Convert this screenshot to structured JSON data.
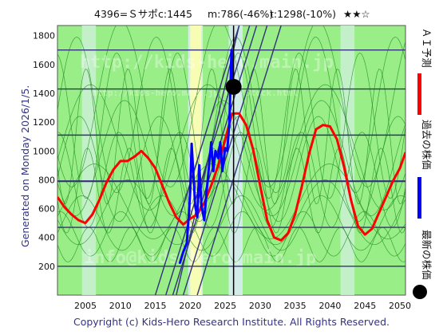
{
  "header": {
    "code_name": "4396=Ｓサポ",
    "current": "c:1445",
    "ma": "m:786(-46%)",
    "target": "t:1298(-10%)",
    "stars": "★★☆"
  },
  "side_text": "Generated on Monday 2026/1/5.",
  "footer": "Copyright (c) Kids-Hero Research Institute. All Rights Reserved.",
  "watermarks": [
    "http://kids-hero.main.jp",
    "http://kids-hero.main.jp/top/Stock.html",
    "info@kids-hero.main.jp"
  ],
  "legend": [
    {
      "label": "ＡＩ予測",
      "color": "#ff0000"
    },
    {
      "label": "過去の株価",
      "color": "#0000ff"
    },
    {
      "label": "最新の株価",
      "color": "#000000"
    }
  ],
  "colors": {
    "background_green": "#99ee88",
    "highlight_white": "#d8ecf2",
    "highlight_yellow": "#ffffaa",
    "grid": "#333377",
    "ai_line": "#ff0000",
    "price_line": "#0000ff",
    "trend_lines": "#333377",
    "thin_lines": "#1a8a1a"
  },
  "chart_data": {
    "type": "line",
    "xlim": [
      2001,
      2050.8
    ],
    "ylim": [
      0,
      1870
    ],
    "x_ticks": [
      2005,
      2010,
      2015,
      2020,
      2025,
      2030,
      2035,
      2040,
      2045,
      2050
    ],
    "y_ticks": [
      200,
      400,
      600,
      800,
      1000,
      1200,
      1400,
      1600,
      1800
    ],
    "horizontal_lines": [
      200,
      470,
      790,
      1110,
      1430,
      1700
    ],
    "vertical_markers": [
      2026.2
    ],
    "latest_price": {
      "x": 2026.2,
      "y": 1445
    },
    "highlight_bands": [
      {
        "from": 2019.7,
        "to": 2021.8,
        "kind": "white"
      },
      {
        "from": 2020.0,
        "to": 2021.6,
        "kind": "yellow"
      },
      {
        "from": 2025.5,
        "to": 2027.5,
        "kind": "white"
      },
      {
        "from": 2004.5,
        "to": 2006.5,
        "kind": "light"
      },
      {
        "from": 2041.5,
        "to": 2043.5,
        "kind": "light"
      }
    ],
    "series": [
      {
        "name": "ＡＩ予測",
        "x": [
          2001,
          2002,
          2003,
          2004,
          2005,
          2006,
          2007,
          2008,
          2009,
          2010,
          2011,
          2012,
          2013,
          2014,
          2015,
          2016,
          2017,
          2018,
          2019,
          2020,
          2021,
          2022,
          2023,
          2024,
          2025,
          2026,
          2027,
          2028,
          2029,
          2030,
          2031,
          2032,
          2033,
          2034,
          2035,
          2036,
          2037,
          2038,
          2039,
          2040,
          2041,
          2042,
          2043,
          2044,
          2045,
          2046,
          2047,
          2048,
          2049,
          2050,
          2050.8
        ],
        "values": [
          680,
          610,
          560,
          520,
          500,
          560,
          660,
          780,
          870,
          930,
          930,
          960,
          1000,
          950,
          880,
          760,
          640,
          540,
          490,
          530,
          560,
          640,
          760,
          900,
          1080,
          1260,
          1260,
          1180,
          1010,
          760,
          520,
          400,
          380,
          430,
          560,
          760,
          980,
          1150,
          1180,
          1170,
          1080,
          890,
          660,
          480,
          420,
          460,
          570,
          680,
          790,
          880,
          990
        ]
      },
      {
        "name": "過去の株価",
        "x": [
          2018.5,
          2019.0,
          2019.5,
          2019.8,
          2020.0,
          2020.2,
          2020.5,
          2020.7,
          2021.0,
          2021.3,
          2021.6,
          2022.0,
          2022.3,
          2022.6,
          2023.0,
          2023.3,
          2023.6,
          2024.0,
          2024.3,
          2024.6,
          2025.0,
          2025.3,
          2025.6,
          2025.9,
          2026.2
        ],
        "values": [
          220,
          300,
          360,
          560,
          720,
          1050,
          800,
          620,
          540,
          900,
          620,
          520,
          700,
          850,
          1060,
          860,
          1000,
          950,
          1060,
          860,
          1020,
          1000,
          1200,
          1700,
          1445
        ]
      }
    ],
    "trend_lines": [
      {
        "from": [
          2016.5,
          0
        ],
        "to": [
          2028.5,
          1870
        ]
      },
      {
        "from": [
          2017.5,
          0
        ],
        "to": [
          2029.5,
          1870
        ]
      },
      {
        "from": [
          2019.0,
          0
        ],
        "to": [
          2031.0,
          1870
        ]
      },
      {
        "from": [
          2015.0,
          0
        ],
        "to": [
          2027.0,
          1870
        ]
      },
      {
        "from": [
          2018.0,
          0
        ],
        "to": [
          2027.0,
          1870
        ]
      },
      {
        "from": [
          2021.0,
          0
        ],
        "to": [
          2033.0,
          1870
        ]
      }
    ]
  }
}
